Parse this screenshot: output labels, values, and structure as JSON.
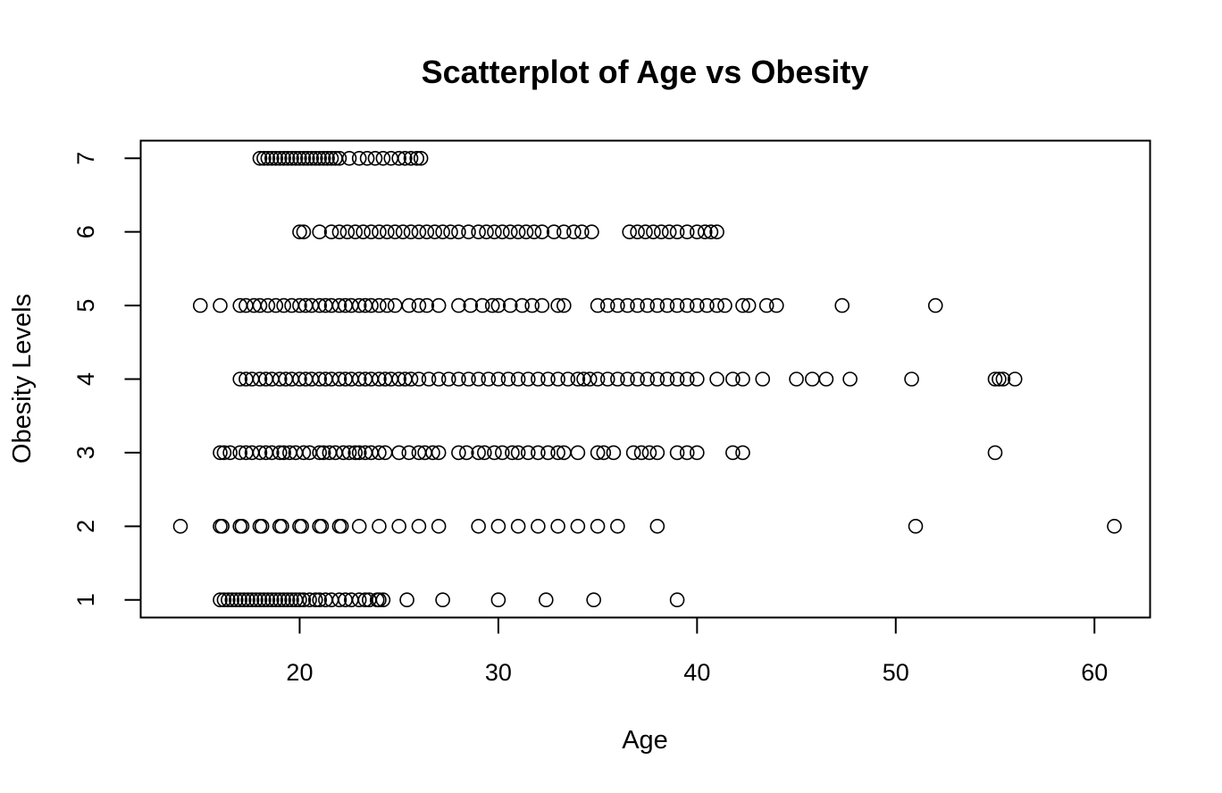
{
  "chart_data": {
    "type": "scatter",
    "title": "Scatterplot of Age vs Obesity",
    "xlabel": "Age",
    "ylabel": "Obesity Levels",
    "xlim": [
      12.0,
      62.8
    ],
    "ylim": [
      0.76,
      7.24
    ],
    "xticks": [
      20,
      30,
      40,
      50,
      60
    ],
    "yticks": [
      1,
      2,
      3,
      4,
      5,
      6,
      7
    ],
    "grid": false,
    "legend": "none",
    "marker": "open-circle",
    "colors": {
      "ink": "#000000",
      "background": "#ffffff"
    },
    "series": [
      {
        "name": "Obesity level 1",
        "level": 1,
        "x": [
          16.0,
          16.2,
          16.4,
          16.6,
          16.8,
          17.0,
          17.2,
          17.4,
          17.6,
          17.8,
          18.0,
          18.2,
          18.4,
          18.6,
          18.8,
          19.0,
          19.2,
          19.4,
          19.6,
          19.8,
          20.0,
          20.2,
          20.5,
          20.8,
          21.0,
          21.3,
          21.6,
          22.0,
          22.3,
          22.6,
          23.0,
          23.3,
          23.5,
          23.9,
          24.0,
          24.2,
          25.4,
          27.2,
          30.0,
          32.4,
          34.8,
          39.0
        ],
        "y": [
          1,
          1,
          1,
          1,
          1,
          1,
          1,
          1,
          1,
          1,
          1,
          1,
          1,
          1,
          1,
          1,
          1,
          1,
          1,
          1,
          1,
          1,
          1,
          1,
          1,
          1,
          1,
          1,
          1,
          1,
          1,
          1,
          1,
          1,
          1,
          1,
          1,
          1,
          1,
          1,
          1,
          1
        ]
      },
      {
        "name": "Obesity level 2",
        "level": 2,
        "x": [
          14.0,
          16.0,
          16.1,
          17.0,
          17.1,
          18.0,
          18.1,
          19.0,
          19.1,
          20.0,
          20.1,
          21.0,
          21.1,
          22.0,
          22.1,
          23.0,
          24.0,
          25.0,
          26.0,
          27.0,
          29.0,
          30.0,
          31.0,
          32.0,
          33.0,
          34.0,
          35.0,
          36.0,
          38.0,
          51.0,
          61.0
        ],
        "y": [
          2,
          2,
          2,
          2,
          2,
          2,
          2,
          2,
          2,
          2,
          2,
          2,
          2,
          2,
          2,
          2,
          2,
          2,
          2,
          2,
          2,
          2,
          2,
          2,
          2,
          2,
          2,
          2,
          2,
          2,
          2
        ]
      },
      {
        "name": "Obesity level 3",
        "level": 3,
        "x": [
          16.0,
          16.2,
          16.5,
          17.0,
          17.3,
          17.6,
          18.0,
          18.3,
          18.6,
          19.0,
          19.2,
          19.5,
          19.8,
          20.2,
          20.5,
          21.0,
          21.2,
          21.5,
          21.8,
          22.2,
          22.5,
          22.8,
          23.0,
          23.3,
          23.6,
          24.0,
          24.3,
          25.0,
          25.5,
          26.0,
          26.3,
          26.7,
          27.0,
          28.0,
          28.4,
          29.0,
          29.3,
          29.8,
          30.2,
          30.7,
          31.0,
          31.5,
          32.0,
          32.5,
          33.0,
          33.3,
          34.0,
          35.0,
          35.3,
          35.8,
          36.8,
          37.2,
          37.6,
          38.0,
          39.0,
          39.5,
          40.0,
          41.8,
          42.3,
          55.0
        ],
        "y": [
          3,
          3,
          3,
          3,
          3,
          3,
          3,
          3,
          3,
          3,
          3,
          3,
          3,
          3,
          3,
          3,
          3,
          3,
          3,
          3,
          3,
          3,
          3,
          3,
          3,
          3,
          3,
          3,
          3,
          3,
          3,
          3,
          3,
          3,
          3,
          3,
          3,
          3,
          3,
          3,
          3,
          3,
          3,
          3,
          3,
          3,
          3,
          3,
          3,
          3,
          3,
          3,
          3,
          3,
          3,
          3,
          3,
          3,
          3,
          3
        ]
      },
      {
        "name": "Obesity level 4",
        "level": 4,
        "x": [
          17.0,
          17.3,
          17.6,
          18.0,
          18.3,
          18.6,
          19.0,
          19.3,
          19.6,
          20.0,
          20.3,
          20.6,
          21.0,
          21.3,
          21.6,
          22.0,
          22.3,
          22.6,
          23.0,
          23.3,
          23.6,
          24.0,
          24.3,
          24.6,
          25.0,
          25.3,
          25.6,
          26.0,
          26.5,
          27.0,
          27.5,
          28.0,
          28.5,
          29.0,
          29.5,
          30.0,
          30.5,
          31.0,
          31.5,
          32.0,
          32.5,
          33.0,
          33.5,
          34.0,
          34.3,
          34.6,
          35.0,
          35.5,
          36.0,
          36.5,
          37.0,
          37.5,
          38.0,
          38.5,
          39.0,
          39.5,
          40.0,
          41.0,
          41.8,
          42.3,
          43.3,
          45.0,
          45.8,
          46.5,
          47.7,
          50.8,
          55.0,
          55.2,
          55.4,
          56.0
        ],
        "y": [
          4,
          4,
          4,
          4,
          4,
          4,
          4,
          4,
          4,
          4,
          4,
          4,
          4,
          4,
          4,
          4,
          4,
          4,
          4,
          4,
          4,
          4,
          4,
          4,
          4,
          4,
          4,
          4,
          4,
          4,
          4,
          4,
          4,
          4,
          4,
          4,
          4,
          4,
          4,
          4,
          4,
          4,
          4,
          4,
          4,
          4,
          4,
          4,
          4,
          4,
          4,
          4,
          4,
          4,
          4,
          4,
          4,
          4,
          4,
          4,
          4,
          4,
          4,
          4,
          4,
          4,
          4,
          4,
          4,
          4
        ]
      },
      {
        "name": "Obesity level 5",
        "level": 5,
        "x": [
          15.0,
          16.0,
          17.0,
          17.3,
          17.7,
          18.0,
          18.4,
          18.8,
          19.2,
          19.6,
          20.0,
          20.3,
          20.6,
          21.0,
          21.3,
          21.6,
          22.0,
          22.3,
          22.6,
          23.0,
          23.3,
          23.6,
          24.0,
          24.4,
          24.8,
          25.5,
          26.0,
          26.4,
          27.0,
          28.0,
          28.6,
          29.2,
          29.7,
          30.0,
          30.6,
          31.2,
          31.7,
          32.2,
          33.0,
          33.3,
          35.0,
          35.5,
          36.0,
          36.5,
          37.0,
          37.5,
          38.0,
          38.5,
          39.0,
          39.5,
          40.0,
          40.5,
          41.0,
          41.4,
          42.3,
          42.6,
          43.5,
          44.0,
          47.3,
          52.0
        ],
        "y": [
          5,
          5,
          5,
          5,
          5,
          5,
          5,
          5,
          5,
          5,
          5,
          5,
          5,
          5,
          5,
          5,
          5,
          5,
          5,
          5,
          5,
          5,
          5,
          5,
          5,
          5,
          5,
          5,
          5,
          5,
          5,
          5,
          5,
          5,
          5,
          5,
          5,
          5,
          5,
          5,
          5,
          5,
          5,
          5,
          5,
          5,
          5,
          5,
          5,
          5,
          5,
          5,
          5,
          5,
          5,
          5,
          5,
          5,
          5,
          5
        ]
      },
      {
        "name": "Obesity level 6",
        "level": 6,
        "x": [
          20.0,
          20.2,
          21.0,
          21.6,
          22.0,
          22.4,
          22.8,
          23.2,
          23.6,
          24.0,
          24.4,
          24.8,
          25.2,
          25.6,
          26.0,
          26.4,
          26.8,
          27.2,
          27.6,
          28.0,
          28.5,
          29.0,
          29.4,
          29.8,
          30.2,
          30.6,
          31.0,
          31.4,
          31.8,
          32.2,
          32.8,
          33.3,
          33.8,
          34.2,
          34.7,
          36.6,
          37.0,
          37.4,
          37.8,
          38.2,
          38.6,
          39.0,
          39.5,
          40.0,
          40.4,
          40.7,
          41.0
        ],
        "y": [
          6,
          6,
          6,
          6,
          6,
          6,
          6,
          6,
          6,
          6,
          6,
          6,
          6,
          6,
          6,
          6,
          6,
          6,
          6,
          6,
          6,
          6,
          6,
          6,
          6,
          6,
          6,
          6,
          6,
          6,
          6,
          6,
          6,
          6,
          6,
          6,
          6,
          6,
          6,
          6,
          6,
          6,
          6,
          6,
          6,
          6,
          6
        ]
      },
      {
        "name": "Obesity level 7",
        "level": 7,
        "x": [
          18.0,
          18.2,
          18.4,
          18.6,
          18.8,
          19.0,
          19.2,
          19.4,
          19.6,
          19.8,
          20.0,
          20.2,
          20.4,
          20.6,
          20.8,
          21.0,
          21.2,
          21.4,
          21.6,
          21.8,
          22.0,
          22.5,
          23.0,
          23.4,
          23.8,
          24.2,
          24.6,
          25.0,
          25.3,
          25.6,
          25.9,
          26.1
        ],
        "y": [
          7,
          7,
          7,
          7,
          7,
          7,
          7,
          7,
          7,
          7,
          7,
          7,
          7,
          7,
          7,
          7,
          7,
          7,
          7,
          7,
          7,
          7,
          7,
          7,
          7,
          7,
          7,
          7,
          7,
          7,
          7,
          7
        ]
      }
    ]
  }
}
